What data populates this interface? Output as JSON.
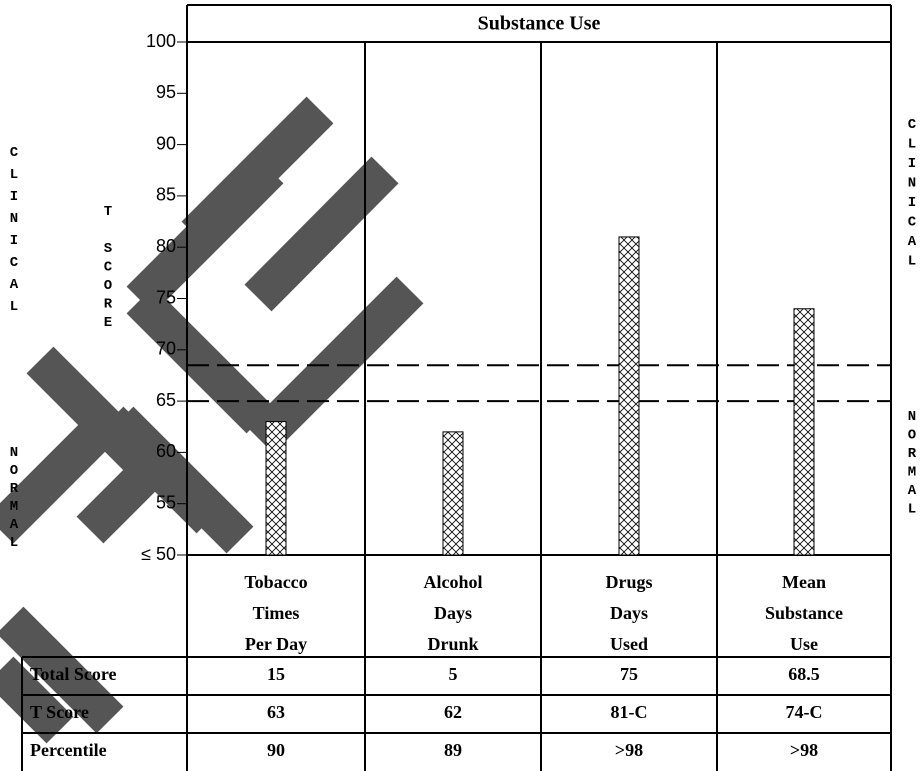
{
  "chart_data": {
    "type": "bar",
    "title": "Substance Use",
    "categories": [
      [
        "Tobacco",
        "Times",
        "Per Day"
      ],
      [
        "Alcohol",
        "Days",
        "Drunk"
      ],
      [
        "Drugs",
        "Days",
        "Used"
      ],
      [
        "Mean",
        "Substance",
        "Use"
      ]
    ],
    "values": [
      63,
      62,
      81,
      74
    ],
    "ylim": [
      50,
      100
    ],
    "yticks": [
      {
        "value": 50,
        "label": "≤ 50"
      },
      55,
      60,
      65,
      70,
      75,
      80,
      85,
      90,
      95,
      100
    ],
    "reference_lines": [
      65,
      68.5
    ],
    "left_labels": [
      "CLINICAL",
      "NORMAL"
    ],
    "right_labels": [
      "CLINICAL",
      "NORMAL"
    ],
    "y_label": "T SCORE"
  },
  "table": {
    "rows": [
      [
        "Total Score",
        "15",
        "5",
        "75",
        "68.5"
      ],
      [
        "T Score",
        "63",
        "62",
        "81-C",
        "74-C"
      ],
      [
        "Percentile",
        "90",
        "89",
        ">98",
        ">98"
      ]
    ]
  }
}
